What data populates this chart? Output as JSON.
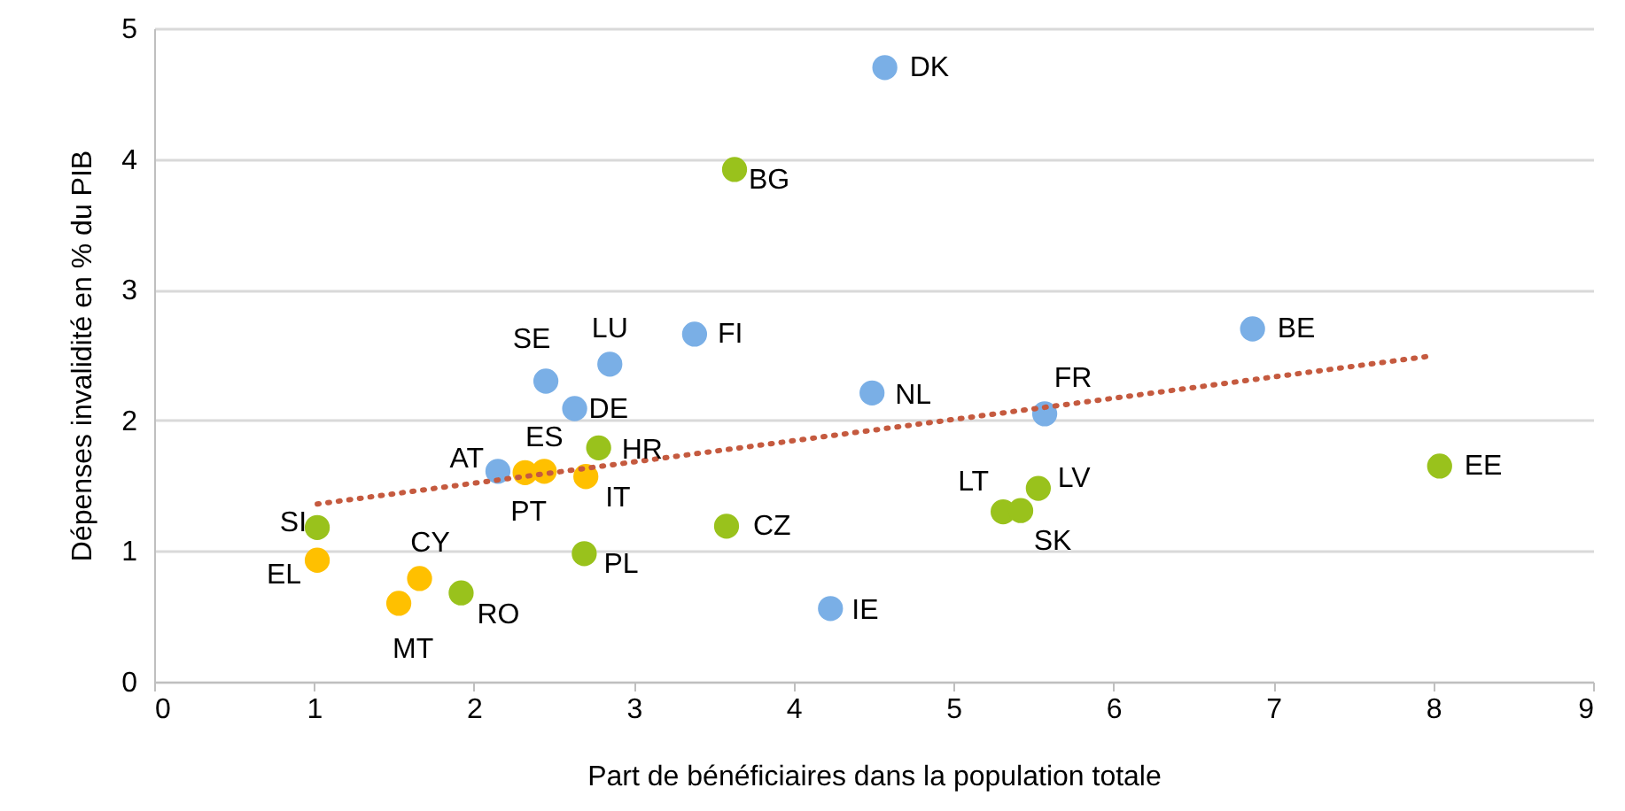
{
  "chart_data": {
    "type": "scatter",
    "xlabel": "Part de bénéficiaires dans la population totale",
    "ylabel": "Dépenses invalidité en % du PIB",
    "xlim": [
      0,
      9
    ],
    "xticks": [
      0,
      1,
      2,
      3,
      4,
      5,
      6,
      7,
      8,
      9
    ],
    "ylim": [
      0,
      5
    ],
    "yticks": [
      0,
      1,
      2,
      3,
      4,
      5
    ],
    "grid": "y",
    "marker": "circle",
    "series": [
      {
        "color": "#7aafe6",
        "x": [
          4.57,
          6.87,
          3.38,
          2.85,
          2.45,
          2.63,
          4.49,
          5.57,
          2.15,
          4.23
        ],
        "values": [
          4.7,
          2.7,
          2.66,
          2.43,
          2.3,
          2.09,
          2.21,
          2.05,
          1.61,
          0.56
        ]
      },
      {
        "color": "#99c21c",
        "x": [
          3.63,
          2.78,
          8.04,
          5.53,
          5.31,
          5.42,
          3.58,
          1.02,
          2.69,
          1.92
        ],
        "values": [
          3.92,
          1.79,
          1.65,
          1.48,
          1.3,
          1.31,
          1.19,
          1.18,
          0.98,
          0.68
        ]
      },
      {
        "color": "#ffc000",
        "x": [
          2.32,
          2.44,
          2.7,
          1.02,
          1.66,
          1.53
        ],
        "values": [
          1.6,
          1.61,
          1.57,
          0.93,
          0.79,
          0.6
        ]
      },
      {
        "type": "line",
        "color": "#c55a3f",
        "line_style": "dotted",
        "marker": "none",
        "x": [
          1.02,
          7.97
        ],
        "values": [
          1.36,
          2.49
        ]
      }
    ],
    "annotations": [
      {
        "text": "DK",
        "x": 4.57,
        "y": 4.7
      },
      {
        "text": "BE",
        "x": 6.87,
        "y": 2.7
      },
      {
        "text": "FI",
        "x": 3.38,
        "y": 2.66
      },
      {
        "text": "LU",
        "x": 2.85,
        "y": 2.43
      },
      {
        "text": "SE",
        "x": 2.45,
        "y": 2.3
      },
      {
        "text": "DE",
        "x": 2.63,
        "y": 2.09
      },
      {
        "text": "NL",
        "x": 4.49,
        "y": 2.21
      },
      {
        "text": "FR",
        "x": 5.57,
        "y": 2.05
      },
      {
        "text": "AT",
        "x": 2.15,
        "y": 1.61
      },
      {
        "text": "IE",
        "x": 4.23,
        "y": 0.56
      },
      {
        "text": "BG",
        "x": 3.63,
        "y": 3.92
      },
      {
        "text": "HR",
        "x": 2.78,
        "y": 1.79
      },
      {
        "text": "EE",
        "x": 8.04,
        "y": 1.65
      },
      {
        "text": "LV",
        "x": 5.53,
        "y": 1.48
      },
      {
        "text": "LT",
        "x": 5.31,
        "y": 1.3
      },
      {
        "text": "SK",
        "x": 5.42,
        "y": 1.31
      },
      {
        "text": "CZ",
        "x": 3.58,
        "y": 1.19
      },
      {
        "text": "SI",
        "x": 1.02,
        "y": 1.18
      },
      {
        "text": "PL",
        "x": 2.69,
        "y": 0.98
      },
      {
        "text": "RO",
        "x": 1.92,
        "y": 0.68
      },
      {
        "text": "PT",
        "x": 2.32,
        "y": 1.6
      },
      {
        "text": "ES",
        "x": 2.44,
        "y": 1.61
      },
      {
        "text": "IT",
        "x": 2.7,
        "y": 1.57
      },
      {
        "text": "EL",
        "x": 1.02,
        "y": 0.93
      },
      {
        "text": "CY",
        "x": 1.66,
        "y": 0.79
      },
      {
        "text": "MT",
        "x": 1.53,
        "y": 0.6
      }
    ]
  }
}
